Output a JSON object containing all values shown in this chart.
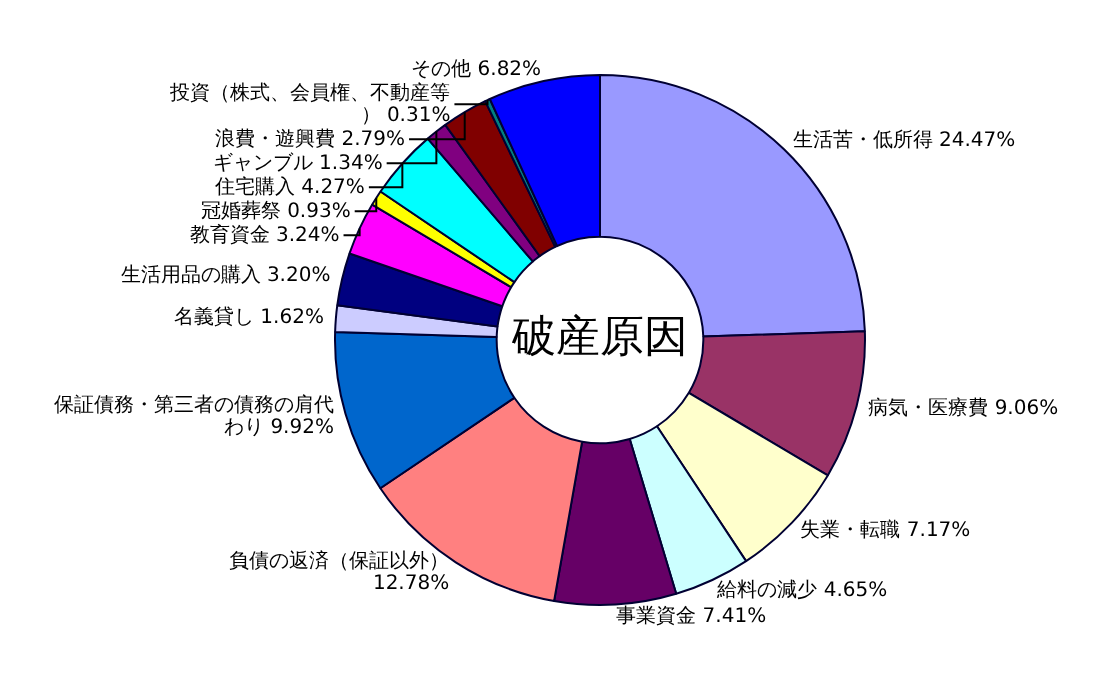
{
  "chart_data": {
    "type": "donut",
    "title": "破産原因",
    "categories": [
      "生活苦・低所得",
      "病気・医療費",
      "失業・転職",
      "給料の減少",
      "事業資金",
      "負債の返済（保証以外）",
      "保証債務・第三者の債務の肩代わり",
      "名義貸し",
      "生活用品の購入",
      "教育資金",
      "冠婚葬祭",
      "住宅購入",
      "ギャンブル",
      "浪費・遊興費",
      "投資（株式、会員権、不動産等）",
      "その他"
    ],
    "values": [
      24.47,
      9.06,
      7.17,
      4.65,
      7.41,
      12.78,
      9.92,
      1.62,
      3.2,
      3.24,
      0.93,
      4.27,
      1.34,
      2.79,
      0.31,
      6.82
    ],
    "value_labels": [
      "24.47%",
      "9.06%",
      "7.17%",
      "4.65%",
      "7.41%",
      "12.78%",
      "9.92%",
      "1.62%",
      "3.20%",
      "3.24%",
      "0.93%",
      "4.27%",
      "1.34%",
      "2.79%",
      "0.31%",
      "6.82%"
    ],
    "colors": [
      "#9999ff",
      "#993366",
      "#ffffcc",
      "#ccffff",
      "#660066",
      "#ff8080",
      "#0066cc",
      "#ccccff",
      "#000080",
      "#ff00ff",
      "#ffff00",
      "#00ffff",
      "#800080",
      "#800000",
      "#008080",
      "#0000ff"
    ]
  }
}
